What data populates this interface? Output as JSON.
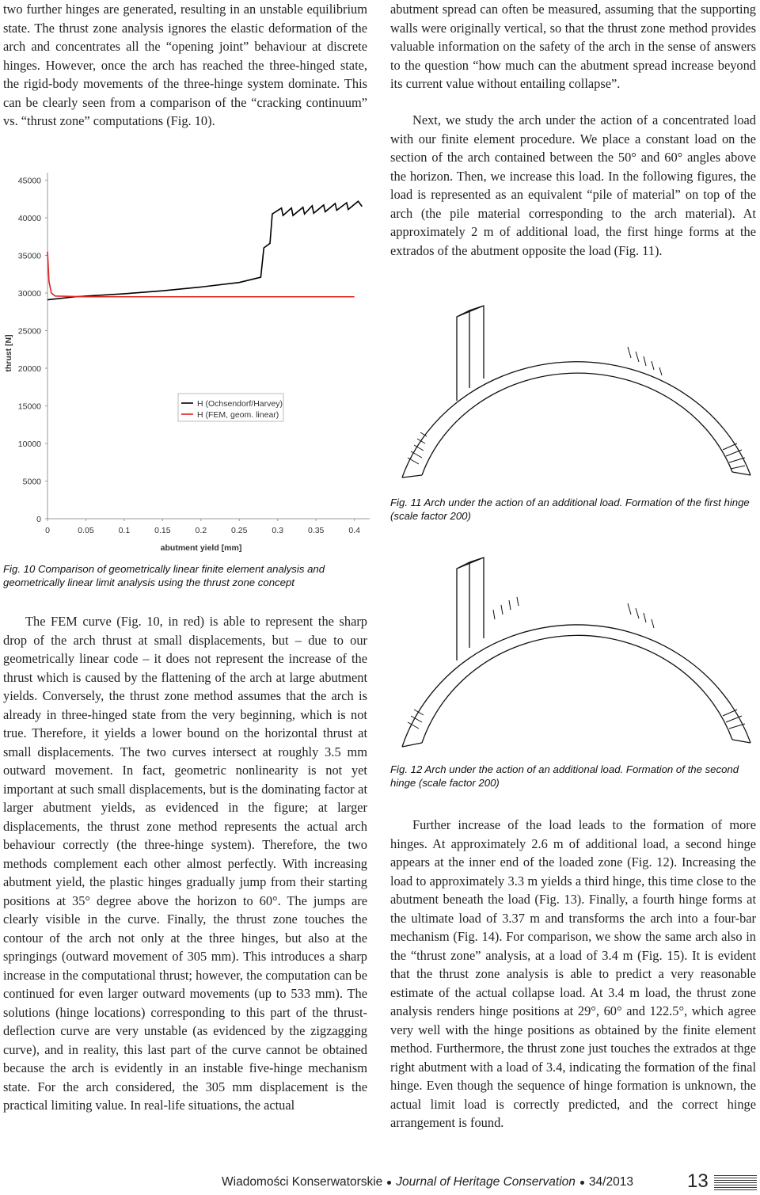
{
  "document": {
    "left_column": {
      "paragraph_1": "two further hinges are generated, resulting in an unstable equilibrium state. The thrust zone analysis ignores the elastic deformation of the arch and concentrates all the “opening joint” behaviour at discrete hinges. However, once the arch has reached the three-hinged state, the rigid-body movements of the three-hinge system dominate. This can be clearly seen from a comparison of the “cracking continuum” vs. “thrust zone” computations (Fig. 10).",
      "figure_10_caption": "Fig. 10 Comparison of geometrically linear finite element analysis and geometrically linear limit analysis using the thrust zone concept",
      "paragraph_2": "The FEM curve (Fig. 10, in red) is able to represent the sharp drop of the arch thrust at small displacements, but – due to our geometrically linear code – it does not represent the increase of the thrust which is caused by the flattening of the arch at large abutment yields. Conversely, the thrust zone method assumes that the arch is already in three-hinged state from the very beginning, which is not true. Therefore, it yields a lower bound on the horizontal thrust at small displacements. The two curves intersect at roughly 3.5 mm outward movement. In fact, geometric nonlinearity is not yet important at such small displacements, but is the dominating factor at larger abutment yields, as evidenced in the figure; at larger displacements, the thrust zone method represents the actual arch behaviour correctly (the three-hinge system). Therefore, the two methods complement each other almost perfectly. With increasing abutment yield, the plastic hinges gradually jump from their starting positions at 35° degree above the horizon to 60°. The jumps are clearly visible in the curve. Finally, the thrust zone touches the contour of the arch not only at the three hinges, but also at the springings (outward movement of 305 mm). This introduces a sharp increase in the computational thrust; however, the computation can be continued for even larger outward movements (up to 533 mm). The solutions (hinge locations) corresponding to this part of the thrust-deflection curve are very unstable (as evidenced by the zigzagging curve), and in reality, this last part of the curve cannot be obtained because the arch is evidently in an instable five-hinge mechanism state. For the arch considered, the 305 mm displacement is the practical limiting value. In real-life situations, the actual"
    },
    "right_column": {
      "paragraph_1": "abutment spread can often be measured, assuming that the supporting walls were originally vertical, so that the thrust zone method provides valuable information on the safety of the arch in the sense of answers to the question “how much can the abutment spread increase beyond its current value without entailing collapse”.",
      "paragraph_2": "Next, we study the arch under the action of a concentrated load with our finite element procedure. We place a constant load on the section of the arch contained between the 50° and 60° angles above the horizon. Then, we increase this load. In the following figures, the load is represented as an equivalent “pile of material” on top of the arch (the pile material corresponding to the arch material). At approximately 2 m of additional load, the first hinge forms at the extrados of the abutment opposite the load (Fig. 11).",
      "figure_11_caption": "Fig. 11 Arch under the action of an additional load. Formation of the first hinge (scale factor 200)",
      "figure_12_caption": "Fig. 12 Arch under the action of an additional load. Formation of the second hinge (scale factor 200)",
      "paragraph_3": "Further increase of the load leads to the formation of more hinges. At approximately 2.6 m of additional load, a second hinge appears at the inner end of the loaded zone (Fig. 12). Increasing the load to approximately 3.3 m yields a third hinge, this time close to the abutment beneath the load (Fig. 13). Finally, a fourth hinge forms at the ultimate load of 3.37 m and transforms the arch into a four-bar mechanism (Fig. 14). For comparison, we show the same arch also in the “thrust zone” analysis, at a load of 3.4 m (Fig. 15). It is evident that the thrust zone analysis is able to predict a very reasonable estimate of the actual collapse load. At 3.4 m load, the thrust zone analysis renders hinge positions at 29°, 60° and 122.5°, which agree very well with the hinge positions as obtained by the finite element method. Furthermore, the thrust zone just touches the extrados at thge right abutment with a load of 3.4, indicating the formation of the final hinge. Even though the sequence of hinge formation is unknown, the actual limit load is correctly predicted, and the correct hinge arrangement is found."
    },
    "footer": {
      "publisher": "Wiadomości Konserwatorskie",
      "journal": "Journal of Heritage Conservation",
      "issue": "34/2013",
      "page": "13"
    }
  },
  "chart_data": {
    "type": "line",
    "x_label": "abutment yield [mm]",
    "y_label": "thrust [N]",
    "xlim": [
      0,
      0.42
    ],
    "ylim": [
      0,
      46000
    ],
    "xticks": [
      0,
      0.05,
      0.1,
      0.15,
      0.2,
      0.25,
      0.3,
      0.35,
      0.4
    ],
    "yticks": [
      0,
      5000,
      10000,
      15000,
      20000,
      25000,
      30000,
      35000,
      40000,
      45000
    ],
    "series": [
      {
        "name": "H (Ochsendorf/Harvey)",
        "color": "#000000",
        "x": [
          0,
          0.036,
          0.1,
          0.15,
          0.2,
          0.25,
          0.278,
          0.282,
          0.29,
          0.293,
          0.305,
          0.307,
          0.318,
          0.32,
          0.333,
          0.335,
          0.345,
          0.347,
          0.36,
          0.362,
          0.375,
          0.377,
          0.39,
          0.392,
          0.405,
          0.41
        ],
        "values": [
          29100,
          29500,
          29900,
          30300,
          30800,
          31400,
          32100,
          36000,
          36600,
          40500,
          41300,
          40300,
          41300,
          40300,
          41400,
          40500,
          41600,
          40600,
          41700,
          40800,
          41900,
          41000,
          42000,
          41100,
          42200,
          41500
        ]
      },
      {
        "name": "H (FEM, geom. linear)",
        "color": "#e02020",
        "x": [
          0,
          0.002,
          0.005,
          0.01,
          0.05,
          0.1,
          0.2,
          0.3,
          0.4
        ],
        "values": [
          35500,
          31500,
          30000,
          29600,
          29500,
          29500,
          29500,
          29500,
          29500
        ]
      }
    ]
  }
}
